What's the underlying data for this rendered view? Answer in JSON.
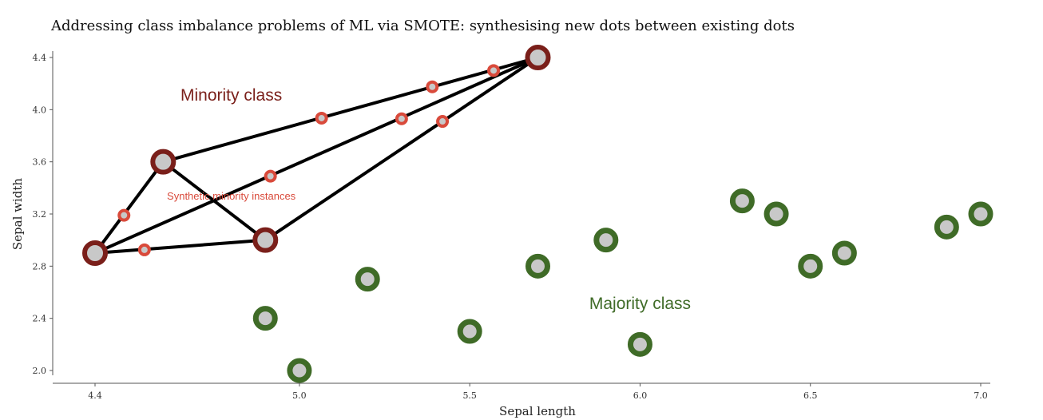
{
  "chart_data": {
    "type": "scatter",
    "title": "Addressing class imbalance problems of ML via SMOTE: synthesising new dots between existing dots",
    "xlabel": "Sepal length",
    "ylabel": "Sepal width",
    "xlim": [
      4.4,
      7.0
    ],
    "ylim": [
      2.0,
      4.4
    ],
    "x_ticks": [
      4.4,
      5.0,
      5.5,
      6.0,
      6.5,
      7.0
    ],
    "x_tick_labels": [
      "4.4",
      "5.0",
      "5.5",
      "6.0",
      "6.5",
      "7.0"
    ],
    "y_ticks": [
      2.0,
      2.4,
      2.8,
      3.2,
      3.6,
      4.0,
      4.4
    ],
    "y_tick_labels": [
      "2.0",
      "2.4",
      "2.8",
      "3.2",
      "3.6",
      "4.0",
      "4.4"
    ],
    "grid": false,
    "colors": {
      "minority": "#7a1f1a",
      "majority": "#3f6b27",
      "synthetic": "#d94a3b",
      "fill": "#c8c8c8",
      "edge": "#000000"
    },
    "series": [
      {
        "name": "Minority class",
        "points": [
          {
            "x": 4.4,
            "y": 2.9
          },
          {
            "x": 4.6,
            "y": 3.6
          },
          {
            "x": 4.9,
            "y": 3.0
          },
          {
            "x": 5.7,
            "y": 4.4
          }
        ]
      },
      {
        "name": "Majority class",
        "points": [
          {
            "x": 4.9,
            "y": 2.4
          },
          {
            "x": 5.0,
            "y": 2.0
          },
          {
            "x": 5.2,
            "y": 2.7
          },
          {
            "x": 5.5,
            "y": 2.3
          },
          {
            "x": 5.7,
            "y": 2.8
          },
          {
            "x": 5.9,
            "y": 3.0
          },
          {
            "x": 6.0,
            "y": 2.2
          },
          {
            "x": 6.3,
            "y": 3.3
          },
          {
            "x": 6.4,
            "y": 3.2
          },
          {
            "x": 6.5,
            "y": 2.8
          },
          {
            "x": 6.6,
            "y": 2.9
          },
          {
            "x": 6.9,
            "y": 3.1
          },
          {
            "x": 7.0,
            "y": 3.2
          }
        ]
      },
      {
        "name": "Synthetic minority instances",
        "points": [
          {
            "x": 4.485,
            "y": 3.19
          },
          {
            "x": 4.545,
            "y": 2.925
          },
          {
            "x": 5.065,
            "y": 3.935
          },
          {
            "x": 4.915,
            "y": 3.49
          },
          {
            "x": 5.3,
            "y": 3.93
          },
          {
            "x": 5.39,
            "y": 4.175
          },
          {
            "x": 5.57,
            "y": 4.3
          },
          {
            "x": 5.42,
            "y": 3.91
          }
        ]
      }
    ],
    "edges": [
      [
        [
          4.4,
          2.9
        ],
        [
          4.6,
          3.6
        ]
      ],
      [
        [
          4.4,
          2.9
        ],
        [
          4.9,
          3.0
        ]
      ],
      [
        [
          4.4,
          2.9
        ],
        [
          5.7,
          4.4
        ]
      ],
      [
        [
          4.6,
          3.6
        ],
        [
          4.9,
          3.0
        ]
      ],
      [
        [
          4.6,
          3.6
        ],
        [
          5.7,
          4.4
        ]
      ],
      [
        [
          4.9,
          3.0
        ],
        [
          5.7,
          4.4
        ]
      ]
    ],
    "annotations": [
      {
        "id": "minority",
        "text": "Minority class",
        "x": 4.8,
        "y": 4.07
      },
      {
        "id": "majority",
        "text": "Majority class",
        "x": 6.0,
        "y": 2.47
      },
      {
        "id": "synthetic",
        "text": "Synthetic minority instances",
        "x": 4.8,
        "y": 3.31
      }
    ]
  }
}
